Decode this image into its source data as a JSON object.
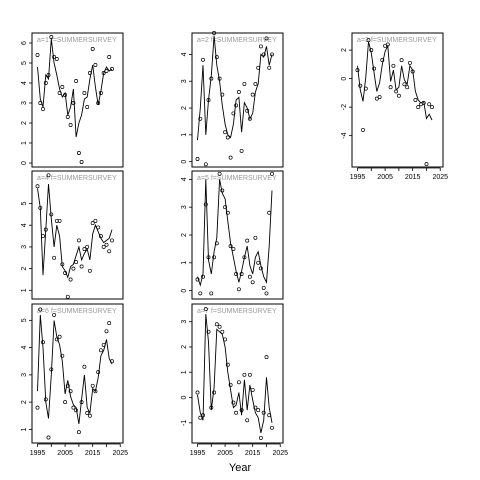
{
  "figure": {
    "xlabel": "Year",
    "xticks": [
      "1995",
      "2005",
      "2015",
      "2025"
    ]
  },
  "chart_data": [
    {
      "type": "scatter",
      "title": "a=1 f=SUMMERSURVEY",
      "xlim": [
        1993,
        2026
      ],
      "ylim": [
        -0.2,
        6.5
      ],
      "yticks": [
        0,
        1,
        2,
        3,
        4,
        5,
        6
      ],
      "points": {
        "x": [
          1995,
          1996,
          1997,
          1998,
          1999,
          2000,
          2001,
          2002,
          2003,
          2004,
          2005,
          2006,
          2007,
          2008,
          2009,
          2010,
          2011,
          2012,
          2013,
          2014,
          2015,
          2016,
          2017,
          2018,
          2019,
          2020,
          2021,
          2022
        ],
        "y": [
          5.4,
          3.0,
          2.7,
          4.0,
          4.4,
          6.3,
          5.3,
          5.2,
          3.5,
          3.8,
          3.4,
          2.3,
          1.9,
          3.0,
          4.1,
          0.5,
          0.05,
          3.5,
          2.8,
          4.5,
          5.7,
          4.9,
          3.0,
          3.5,
          4.5,
          4.6,
          5.3,
          4.7
        ]
      },
      "line": {
        "x": [
          1995,
          1996,
          1997,
          1998,
          1999,
          2000,
          2001,
          2002,
          2003,
          2004,
          2005,
          2006,
          2007,
          2008,
          2009,
          2010,
          2011,
          2012,
          2013,
          2014,
          2015,
          2016,
          2017,
          2018,
          2019,
          2020,
          2021,
          2022
        ],
        "y": [
          4.8,
          3.2,
          2.8,
          4.4,
          4.2,
          6.2,
          5.0,
          4.4,
          3.7,
          3.3,
          3.5,
          2.4,
          2.8,
          3.7,
          1.3,
          2.0,
          2.4,
          3.2,
          3.3,
          4.2,
          4.9,
          3.8,
          2.9,
          3.6,
          4.5,
          4.8,
          4.6,
          4.7
        ]
      }
    },
    {
      "type": "scatter",
      "title": "a=2 f=SUMMERSURVEY",
      "xlim": [
        1993,
        2026
      ],
      "ylim": [
        -0.2,
        4.8
      ],
      "yticks": [
        0,
        1,
        2,
        3,
        4
      ],
      "points": {
        "x": [
          1995,
          1996,
          1997,
          1998,
          1999,
          2000,
          2001,
          2002,
          2003,
          2004,
          2005,
          2006,
          2007,
          2008,
          2009,
          2010,
          2011,
          2012,
          2013,
          2014,
          2015,
          2016,
          2017,
          2018,
          2019,
          2020,
          2021,
          2022
        ],
        "y": [
          0.1,
          1.6,
          3.8,
          -0.1,
          2.3,
          3.1,
          4.8,
          3.9,
          3.1,
          2.5,
          1.1,
          0.9,
          0.15,
          1.8,
          2.1,
          2.6,
          0.4,
          2.9,
          1.9,
          1.6,
          2.5,
          2.9,
          3.5,
          4.3,
          4.0,
          4.6,
          3.5,
          4.0
        ]
      },
      "line": {
        "x": [
          1995,
          1996,
          1997,
          1998,
          1999,
          2000,
          2001,
          2002,
          2003,
          2004,
          2005,
          2006,
          2007,
          2008,
          2009,
          2010,
          2011,
          2012,
          2013,
          2014,
          2015,
          2016,
          2017,
          2018,
          2019,
          2020,
          2021,
          2022
        ],
        "y": [
          0.8,
          2.0,
          3.6,
          1.0,
          2.3,
          3.2,
          4.7,
          3.6,
          3.0,
          2.1,
          1.4,
          1.0,
          0.9,
          1.4,
          2.3,
          2.4,
          1.1,
          2.2,
          2.0,
          1.6,
          1.8,
          2.6,
          2.9,
          4.0,
          3.9,
          4.3,
          3.6,
          4.0
        ]
      }
    },
    {
      "type": "scatter",
      "title": "a=3 f=SUMMERSURVEY",
      "xlim": [
        1993,
        2026
      ],
      "ylim": [
        -6.2,
        3.2
      ],
      "yticks": [
        -4,
        -2,
        0,
        2
      ],
      "points": {
        "x": [
          1995,
          1996,
          1997,
          1998,
          1999,
          2000,
          2001,
          2002,
          2003,
          2004,
          2005,
          2006,
          2007,
          2008,
          2009,
          2010,
          2011,
          2012,
          2013,
          2014,
          2015,
          2016,
          2017,
          2018,
          2019,
          2020,
          2021,
          2022
        ],
        "y": [
          0.6,
          -0.5,
          -3.6,
          -0.7,
          2.7,
          2.0,
          0.7,
          -1.4,
          -1.3,
          1.3,
          2.3,
          2.4,
          -0.6,
          0.9,
          -0.9,
          -1.2,
          1.3,
          -0.4,
          -0.6,
          1.1,
          0.5,
          -1.5,
          -2.0,
          -1.8,
          -1.7,
          -6.0,
          -1.8,
          -2.0
        ]
      },
      "line": {
        "x": [
          1995,
          1996,
          1997,
          1998,
          1999,
          2000,
          2001,
          2002,
          2003,
          2004,
          2005,
          2006,
          2007,
          2008,
          2009,
          2010,
          2011,
          2012,
          2013,
          2014,
          2015,
          2016,
          2017,
          2018,
          2019,
          2020,
          2021,
          2022
        ],
        "y": [
          0.9,
          -0.8,
          -1.6,
          0.1,
          2.6,
          1.8,
          0.4,
          -0.9,
          -0.3,
          1.0,
          1.9,
          2.3,
          -0.2,
          0.6,
          -0.8,
          -0.6,
          0.9,
          -0.1,
          -0.4,
          0.9,
          0.6,
          -0.9,
          -1.5,
          -1.7,
          -1.6,
          -2.8,
          -2.5,
          -2.9
        ]
      }
    },
    {
      "type": "scatter",
      "title": "a=4 f=SUMMERSURVEY",
      "xlim": [
        1993,
        2026
      ],
      "ylim": [
        0.6,
        6.5
      ],
      "yticks": [
        1,
        2,
        3,
        4,
        5
      ],
      "points": {
        "x": [
          1995,
          1996,
          1997,
          1998,
          1999,
          2000,
          2001,
          2002,
          2003,
          2004,
          2005,
          2006,
          2007,
          2008,
          2009,
          2010,
          2011,
          2012,
          2013,
          2014,
          2015,
          2016,
          2017,
          2018,
          2019,
          2020,
          2021,
          2022
        ],
        "y": [
          5.8,
          4.8,
          3.5,
          3.8,
          6.3,
          4.5,
          2.5,
          4.2,
          4.2,
          2.2,
          1.8,
          0.7,
          1.5,
          2.0,
          2.3,
          3.3,
          2.1,
          2.9,
          3.0,
          1.9,
          4.1,
          4.2,
          3.9,
          3.5,
          3.0,
          3.1,
          2.8,
          3.3
        ]
      },
      "line": {
        "x": [
          1995,
          1996,
          1997,
          1998,
          1999,
          2000,
          2001,
          2002,
          2003,
          2004,
          2005,
          2006,
          2007,
          2008,
          2009,
          2010,
          2011,
          2012,
          2013,
          2014,
          2015,
          2016,
          2017,
          2018,
          2019,
          2020,
          2021,
          2022
        ],
        "y": [
          5.7,
          4.8,
          1.7,
          3.8,
          5.9,
          4.3,
          3.0,
          4.0,
          3.5,
          2.1,
          1.9,
          1.6,
          2.1,
          2.2,
          2.6,
          3.0,
          2.4,
          2.7,
          2.9,
          2.4,
          3.6,
          4.0,
          3.7,
          3.4,
          3.2,
          3.3,
          3.4,
          3.8
        ]
      }
    },
    {
      "type": "scatter",
      "title": "a=5 f=SUMMERSURVEY",
      "xlim": [
        1993,
        2026
      ],
      "ylim": [
        -0.3,
        4.3
      ],
      "yticks": [
        0,
        1,
        2,
        3,
        4
      ],
      "points": {
        "x": [
          1995,
          1996,
          1997,
          1998,
          1999,
          2000,
          2001,
          2002,
          2003,
          2004,
          2005,
          2006,
          2007,
          2008,
          2009,
          2010,
          2011,
          2012,
          2013,
          2014,
          2015,
          2016,
          2017,
          2018,
          2019,
          2020,
          2021,
          2022
        ],
        "y": [
          0.4,
          -0.1,
          0.5,
          3.1,
          1.2,
          -0.1,
          1.2,
          1.7,
          4.2,
          3.6,
          3.0,
          2.8,
          1.6,
          1.5,
          0.6,
          0.05,
          0.6,
          1.2,
          1.8,
          0.5,
          0.3,
          1.9,
          1.0,
          0.8,
          0.1,
          -0.1,
          2.8,
          4.2
        ]
      },
      "line": {
        "x": [
          1995,
          1996,
          1997,
          1998,
          1999,
          2000,
          2001,
          2002,
          2003,
          2004,
          2005,
          2006,
          2007,
          2008,
          2009,
          2010,
          2011,
          2012,
          2013,
          2014,
          2015,
          2016,
          2017,
          2018,
          2019,
          2020,
          2021,
          2022
        ],
        "y": [
          0.5,
          0.2,
          0.6,
          4.0,
          1.1,
          0.6,
          1.4,
          1.9,
          4.0,
          3.5,
          3.3,
          2.5,
          1.7,
          1.2,
          0.7,
          0.3,
          0.7,
          1.2,
          1.6,
          0.9,
          0.6,
          1.2,
          1.4,
          0.9,
          0.5,
          0.3,
          1.6,
          3.6
        ]
      }
    },
    {
      "type": "scatter",
      "title": "a=6 f=SUMMERSURVEY",
      "xlim": [
        1993,
        2026
      ],
      "ylim": [
        0.5,
        5.6
      ],
      "yticks": [
        1,
        2,
        3,
        4,
        5
      ],
      "points": {
        "x": [
          1995,
          1996,
          1997,
          1998,
          1999,
          2000,
          2001,
          2002,
          2003,
          2004,
          2005,
          2006,
          2007,
          2008,
          2009,
          2010,
          2011,
          2012,
          2013,
          2014,
          2015,
          2016,
          2017,
          2018,
          2019,
          2020,
          2021,
          2022
        ],
        "y": [
          1.8,
          5.4,
          4.2,
          2.1,
          0.7,
          3.2,
          5.2,
          4.3,
          4.4,
          3.7,
          2.0,
          2.6,
          2.4,
          1.8,
          1.7,
          0.9,
          2.0,
          3.3,
          1.6,
          1.5,
          2.6,
          2.4,
          3.1,
          3.9,
          4.1,
          4.6,
          4.9,
          3.5
        ]
      },
      "line": {
        "x": [
          1995,
          1996,
          1997,
          1998,
          1999,
          2000,
          2001,
          2002,
          2003,
          2004,
          2005,
          2006,
          2007,
          2008,
          2009,
          2010,
          2011,
          2012,
          2013,
          2014,
          2015,
          2016,
          2017,
          2018,
          2019,
          2020,
          2021,
          2022
        ],
        "y": [
          2.4,
          5.2,
          4.0,
          2.0,
          1.4,
          3.0,
          5.0,
          4.4,
          4.1,
          3.5,
          2.3,
          2.8,
          2.2,
          1.9,
          1.8,
          1.2,
          2.1,
          3.0,
          1.8,
          1.6,
          2.5,
          2.4,
          2.9,
          3.7,
          3.9,
          4.3,
          3.6,
          3.4
        ]
      }
    },
    {
      "type": "scatter",
      "title": "a=7 f=SUMMERSURVEY",
      "xlim": [
        1993,
        2026
      ],
      "ylim": [
        -1.8,
        3.7
      ],
      "yticks": [
        -1,
        0,
        1,
        2,
        3
      ],
      "points": {
        "x": [
          1995,
          1996,
          1997,
          1998,
          1999,
          2000,
          2001,
          2002,
          2003,
          2004,
          2005,
          2006,
          2007,
          2008,
          2009,
          2010,
          2011,
          2012,
          2013,
          2014,
          2015,
          2016,
          2017,
          2018,
          2019,
          2020,
          2021,
          2022
        ],
        "y": [
          0.2,
          -0.8,
          -0.7,
          3.5,
          2.6,
          -0.4,
          0.2,
          2.9,
          2.8,
          2.6,
          2.3,
          1.3,
          0.5,
          -0.2,
          -0.6,
          0.6,
          -0.5,
          0.9,
          -0.9,
          0.9,
          0.3,
          -0.4,
          -0.5,
          -1.6,
          -0.6,
          1.6,
          -0.7,
          -1.2
        ]
      },
      "line": {
        "x": [
          1995,
          1996,
          1997,
          1998,
          1999,
          2000,
          2001,
          2002,
          2003,
          2004,
          2005,
          2006,
          2007,
          2008,
          2009,
          2010,
          2011,
          2012,
          2013,
          2014,
          2015,
          2016,
          2017,
          2018,
          2019,
          2020,
          2021,
          2022
        ],
        "y": [
          0.1,
          -0.6,
          -0.9,
          3.3,
          2.2,
          -0.5,
          0.4,
          2.7,
          2.6,
          2.5,
          2.0,
          1.0,
          0.3,
          -0.4,
          -0.3,
          0.2,
          -0.7,
          0.7,
          -0.5,
          0.5,
          -0.1,
          -0.6,
          -0.8,
          -1.4,
          -0.9,
          0.8,
          -0.4,
          -1.0
        ]
      }
    }
  ]
}
